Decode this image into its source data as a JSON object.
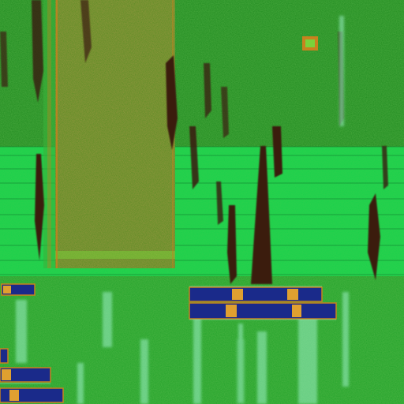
{
  "image": {
    "kind": "false-color aerial / remote-sensing image",
    "visible_text": [],
    "colors": {
      "field_dark": "#1f8a1f",
      "field_bright": "#17d24a",
      "mottled_block": "#4c8a1c",
      "dark_streak": "#3a1a10",
      "bar_fill": "#1a2a8a",
      "bar_edge": "#c8821e",
      "light_streak": "#9cf0c8"
    }
  }
}
